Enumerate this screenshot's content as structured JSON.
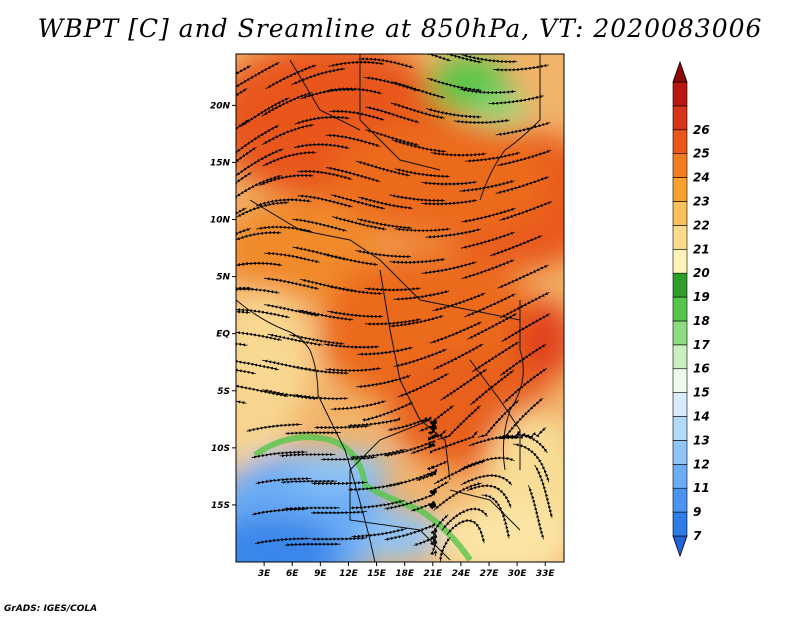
{
  "title": "WBPT [C] and Sreamline at 850hPa, VT: 2020083006",
  "credit": "GrADS: IGES/COLA",
  "map": {
    "lat_labels": [
      "20N",
      "15N",
      "10N",
      "5N",
      "EQ",
      "5S",
      "10S",
      "15S"
    ],
    "lat_values": [
      20,
      15,
      10,
      5,
      0,
      -5,
      -10,
      -15
    ],
    "lon_labels": [
      "3E",
      "6E",
      "9E",
      "12E",
      "15E",
      "18E",
      "21E",
      "24E",
      "27E",
      "30E",
      "33E"
    ],
    "lon_values": [
      3,
      6,
      9,
      12,
      15,
      18,
      21,
      24,
      27,
      30,
      33
    ],
    "lon_range": [
      0,
      35
    ],
    "lat_range": [
      -20,
      24.5
    ]
  },
  "colorbar": {
    "levels": [
      "7",
      "9",
      "11",
      "12",
      "13",
      "14",
      "15",
      "16",
      "17",
      "18",
      "19",
      "20",
      "21",
      "22",
      "23",
      "24",
      "25",
      "26"
    ],
    "colors": [
      "#1f64d6",
      "#2e7ce6",
      "#4a94ef",
      "#6aacf5",
      "#8ec4f8",
      "#b3d9fb",
      "#d8ecfd",
      "#f0fbf0",
      "#c8efc0",
      "#8ddd7e",
      "#56c74a",
      "#2e9e2a",
      "#fdf4b8",
      "#fbdc8a",
      "#f9c05b",
      "#f7a233",
      "#f27d1f",
      "#ea5716",
      "#d8321a",
      "#bb1711",
      "#8f0b0b"
    ]
  }
}
